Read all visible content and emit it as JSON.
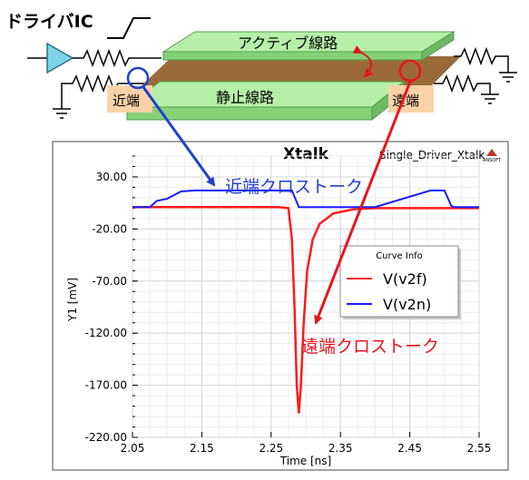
{
  "diagram": {
    "driver_label": "ドライバIC",
    "active_line_label": "アクティブ線路",
    "quiet_line_label": "静止線路",
    "near_end_label": "近端",
    "far_end_label": "遠端"
  },
  "annotations": {
    "near_end_crosstalk": "近端クロストーク",
    "far_end_crosstalk": "遠端クロストーク"
  },
  "colors": {
    "far_series": "#ff1a1a",
    "near_series": "#1a1aff",
    "arrow_blue": "#1f3fd0",
    "arrow_red": "#e8141e",
    "trace_green": "#b6f0a8",
    "dielectric": "#9a6a3a",
    "end_box": "#fbd2a8"
  },
  "chart_data": {
    "type": "line",
    "title": "Xtalk",
    "subtitle": "Single_Driver_Xtalk",
    "logo_text": "ANSOFT",
    "xlabel": "Time [ns]",
    "ylabel": "Y1 [mV]",
    "xlim": [
      2.05,
      2.55
    ],
    "ylim": [
      -220,
      50
    ],
    "x_ticks": [
      "2.05",
      "2.15",
      "2.25",
      "2.35",
      "2.45",
      "2.55"
    ],
    "y_ticks": [
      "30.00",
      "-20.00",
      "-70.00",
      "-120.00",
      "-170.00",
      "-220.00"
    ],
    "grid": true,
    "legend": {
      "title": "Curve Info",
      "placement": "center-right",
      "entries": [
        "V(v2f)",
        "V(v2n)"
      ]
    },
    "series": [
      {
        "name": "V(v2f)",
        "color": "#ff1a1a",
        "points": [
          [
            2.05,
            1
          ],
          [
            2.26,
            1
          ],
          [
            2.275,
            0
          ],
          [
            2.28,
            -30
          ],
          [
            2.284,
            -100
          ],
          [
            2.287,
            -170
          ],
          [
            2.29,
            -197
          ],
          [
            2.293,
            -170
          ],
          [
            2.297,
            -110
          ],
          [
            2.302,
            -60
          ],
          [
            2.31,
            -30
          ],
          [
            2.32,
            -15
          ],
          [
            2.34,
            -5
          ],
          [
            2.37,
            -1
          ],
          [
            2.4,
            0
          ],
          [
            2.55,
            0
          ]
        ]
      },
      {
        "name": "V(v2n)",
        "color": "#1a1aff",
        "points": [
          [
            2.05,
            1
          ],
          [
            2.075,
            1
          ],
          [
            2.085,
            7
          ],
          [
            2.1,
            9
          ],
          [
            2.12,
            16
          ],
          [
            2.14,
            17
          ],
          [
            2.2,
            17
          ],
          [
            2.26,
            17
          ],
          [
            2.28,
            17
          ],
          [
            2.29,
            1
          ],
          [
            2.3,
            1
          ],
          [
            2.4,
            1
          ],
          [
            2.48,
            17
          ],
          [
            2.5,
            17
          ],
          [
            2.51,
            2
          ],
          [
            2.515,
            1
          ],
          [
            2.55,
            1
          ]
        ]
      }
    ]
  }
}
